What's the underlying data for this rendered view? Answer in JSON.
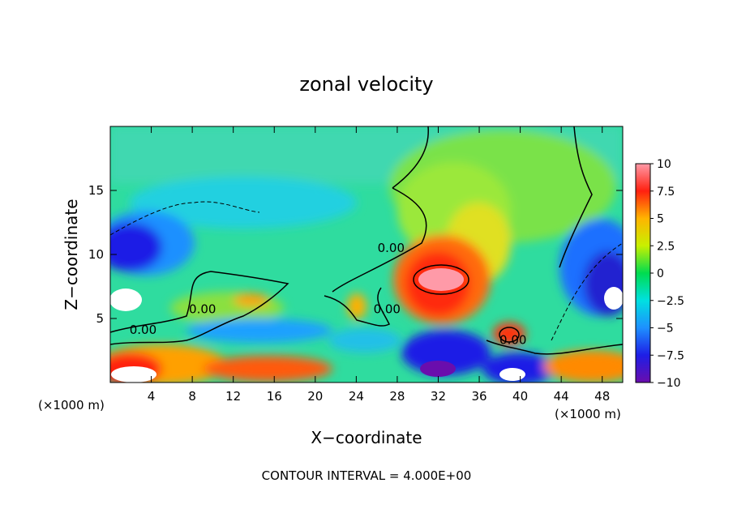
{
  "chart_data": {
    "type": "heatmap",
    "title": "zonal velocity",
    "xlabel": "X−coordinate",
    "ylabel": "Z−coordinate",
    "x_unit_left": "(×1000 m)",
    "x_unit_right": "(×1000 m)",
    "xlim": [
      0,
      50
    ],
    "ylim": [
      0,
      20
    ],
    "x_ticks": [
      "4",
      "8",
      "12",
      "16",
      "20",
      "24",
      "28",
      "32",
      "36",
      "40",
      "44",
      "48"
    ],
    "y_ticks": [
      "5",
      "10",
      "15"
    ],
    "x_tick_values": [
      4,
      8,
      12,
      16,
      20,
      24,
      28,
      32,
      36,
      40,
      44,
      48
    ],
    "y_tick_values": [
      5,
      10,
      15
    ],
    "colorbar": {
      "min": -10,
      "max": 10,
      "ticks": [
        "10",
        "7.5",
        "5",
        "2.5",
        "0",
        "−2.5",
        "−5",
        "−7.5",
        "−10"
      ],
      "tick_values": [
        10,
        7.5,
        5,
        2.5,
        0,
        -2.5,
        -5,
        -7.5,
        -10
      ]
    },
    "contour_labels": [
      {
        "text": "0.00",
        "x": 27.4,
        "y": 10.2
      },
      {
        "text": "0.00",
        "x": 9.0,
        "y": 5.4
      },
      {
        "text": "0.00",
        "x": 3.2,
        "y": 3.8
      },
      {
        "text": "0.00",
        "x": 27.0,
        "y": 5.4
      },
      {
        "text": "0.00",
        "x": 39.3,
        "y": 3.0
      }
    ],
    "footer": "CONTOUR INTERVAL = 4.000E+00",
    "grid": false
  },
  "colors": {
    "scale": [
      "#6a0dad",
      "#1e1ee6",
      "#1e90ff",
      "#00e0e0",
      "#00dc50",
      "#c8f000",
      "#ffb400",
      "#ff2010",
      "#ff9aa8"
    ],
    "background": "#2fdc9f"
  }
}
